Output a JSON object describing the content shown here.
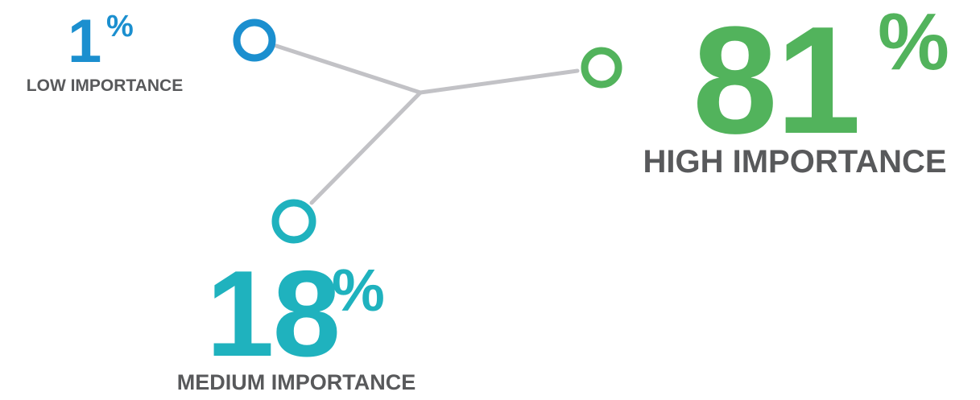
{
  "chart_data": {
    "type": "other",
    "series": [
      {
        "value": 1,
        "suffix": "%",
        "label": "LOW IMPORTANCE",
        "color": "#1b8fcf"
      },
      {
        "value": 18,
        "suffix": "%",
        "label": "MEDIUM IMPORTANCE",
        "color": "#1fb2be"
      },
      {
        "value": 81,
        "suffix": "%",
        "label": "HIGH IMPORTANCE",
        "color": "#52b35c"
      }
    ],
    "connector_color": "#c2c2c6",
    "label_color": "#58595b"
  }
}
